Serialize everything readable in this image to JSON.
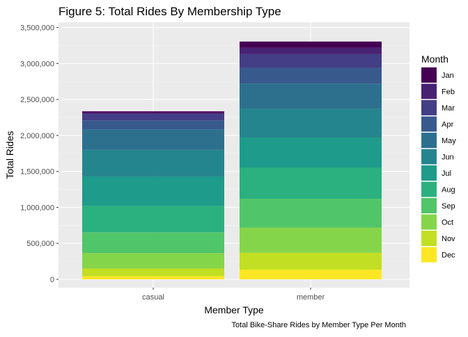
{
  "chart_data": {
    "type": "bar",
    "stacked": true,
    "title": "Figure 5: Total Rides By Membership Type",
    "caption": "Total Bike-Share Rides by Member Type Per Month",
    "xlabel": "Member Type",
    "ylabel": "Total Rides",
    "categories": [
      "casual",
      "member"
    ],
    "ylim": [
      0,
      3500000
    ],
    "yticks": [
      0,
      500000,
      1000000,
      1500000,
      2000000,
      2500000,
      3000000,
      3500000
    ],
    "ytick_labels": [
      "0",
      "500,000",
      "1,000,000",
      "1,500,000",
      "2,000,000",
      "2,500,000",
      "3,000,000",
      "3,500,000"
    ],
    "legend": {
      "title": "Month",
      "position": "right"
    },
    "grid": true,
    "panel_background": "#ebebeb",
    "series": [
      {
        "name": "Jan",
        "color": "#440154",
        "values": [
          18000,
          85000
        ]
      },
      {
        "name": "Feb",
        "color": "#482173",
        "values": [
          22000,
          90000
        ]
      },
      {
        "name": "Mar",
        "color": "#433E85",
        "values": [
          85000,
          190000
        ]
      },
      {
        "name": "Apr",
        "color": "#38598C",
        "values": [
          125000,
          220000
        ]
      },
      {
        "name": "May",
        "color": "#2D708E",
        "values": [
          285000,
          350000
        ]
      },
      {
        "name": "Jun",
        "color": "#25858E",
        "values": [
          370000,
          400000
        ]
      },
      {
        "name": "Jul",
        "color": "#1E9B8A",
        "values": [
          410000,
          420000
        ]
      },
      {
        "name": "Aug",
        "color": "#2BB07F",
        "values": [
          365000,
          430000
        ]
      },
      {
        "name": "Sep",
        "color": "#51C56A",
        "values": [
          290000,
          400000
        ]
      },
      {
        "name": "Oct",
        "color": "#85D54A",
        "values": [
          215000,
          350000
        ]
      },
      {
        "name": "Nov",
        "color": "#C2DF23",
        "values": [
          105000,
          235000
        ]
      },
      {
        "name": "Dec",
        "color": "#FDE725",
        "values": [
          45000,
          135000
        ]
      }
    ]
  }
}
